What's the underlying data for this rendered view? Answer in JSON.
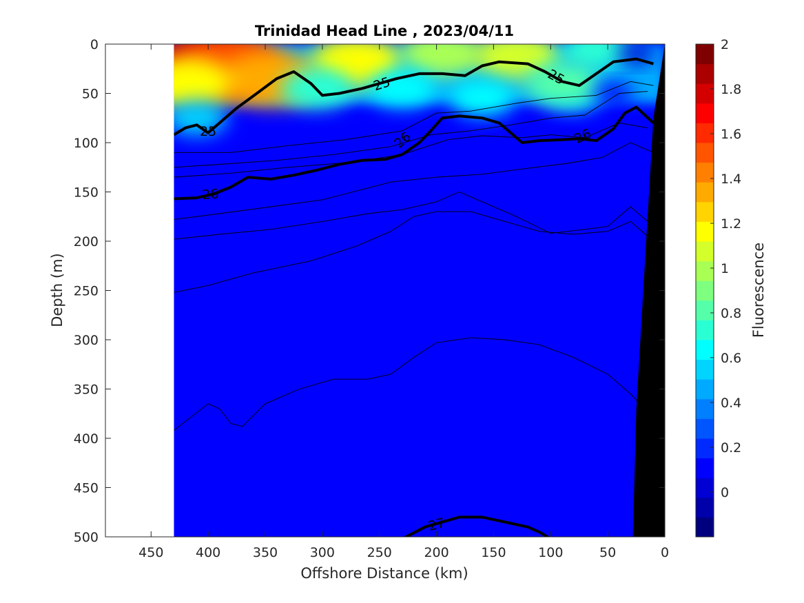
{
  "chart_data": {
    "type": "heatmap",
    "title": "Trinidad Head Line , 2023/04/11",
    "xlabel": "Offshore Distance (km)",
    "ylabel": "Depth (m)",
    "colorbar_label": "Fluorescence",
    "xlim": [
      490,
      0
    ],
    "ylim": [
      0,
      500
    ],
    "x_direction": "reversed",
    "y_direction": "reversed (depth increases downward)",
    "x_ticks": [
      450,
      400,
      350,
      300,
      250,
      200,
      150,
      100,
      50,
      0
    ],
    "y_ticks": [
      0,
      50,
      100,
      150,
      200,
      250,
      300,
      350,
      400,
      450,
      500
    ],
    "colorbar": {
      "range": [
        -0.2,
        2.0
      ],
      "tick_labels": [
        "2",
        "1.8",
        "1.6",
        "1.4",
        "1.2",
        "1",
        "0.8",
        "0.6",
        "0.4",
        "0.2",
        "0"
      ],
      "tick_values": [
        2.0,
        1.8,
        1.6,
        1.4,
        1.2,
        1.0,
        0.8,
        0.6,
        0.4,
        0.2,
        0.0
      ],
      "colors": [
        "#00007f",
        "#0000aa",
        "#0000d4",
        "#0000ff",
        "#002aff",
        "#0055ff",
        "#007fff",
        "#00aaff",
        "#00d4ff",
        "#00ffff",
        "#2affd4",
        "#55ffaa",
        "#7fff7f",
        "#aaff55",
        "#d4ff2a",
        "#ffff00",
        "#ffd400",
        "#ffaa00",
        "#ff7f00",
        "#ff5500",
        "#ff2a00",
        "#ff0000",
        "#d40000",
        "#aa0000",
        "#7f0000"
      ]
    },
    "data_extent_km": [
      430,
      10
    ],
    "background_fluorescence": 0.15,
    "fluorescence_patches": [
      {
        "x": 400,
        "z": 22,
        "value": 1.75
      },
      {
        "x": 380,
        "z": 25,
        "value": 1.5
      },
      {
        "x": 345,
        "z": 35,
        "value": 1.3
      },
      {
        "x": 420,
        "z": 40,
        "value": 1.2
      },
      {
        "x": 270,
        "z": 18,
        "value": 1.15
      },
      {
        "x": 195,
        "z": 10,
        "value": 1.0
      },
      {
        "x": 130,
        "z": 12,
        "value": 1.05
      },
      {
        "x": 305,
        "z": 45,
        "value": 0.75
      },
      {
        "x": 230,
        "z": 45,
        "value": 0.65
      },
      {
        "x": 160,
        "z": 55,
        "value": 0.6
      },
      {
        "x": 80,
        "z": 50,
        "value": 0.55
      },
      {
        "x": 60,
        "z": 5,
        "value": 0.7
      },
      {
        "x": 410,
        "z": 75,
        "value": 0.55
      },
      {
        "x": 90,
        "z": 40,
        "value": 0.8
      },
      {
        "x": 45,
        "z": 50,
        "value": 0.1
      },
      {
        "x": 25,
        "z": 10,
        "value": 0.05
      }
    ],
    "isopycnals": [
      {
        "name": "25",
        "label": "25",
        "bold": true,
        "points": [
          [
            430,
            92
          ],
          [
            420,
            85
          ],
          [
            410,
            82
          ],
          [
            400,
            90
          ],
          [
            390,
            80
          ],
          [
            375,
            65
          ],
          [
            355,
            48
          ],
          [
            340,
            35
          ],
          [
            325,
            28
          ],
          [
            310,
            40
          ],
          [
            300,
            52
          ],
          [
            285,
            50
          ],
          [
            265,
            45
          ],
          [
            250,
            40
          ],
          [
            235,
            35
          ],
          [
            215,
            30
          ],
          [
            195,
            30
          ],
          [
            175,
            32
          ],
          [
            160,
            22
          ],
          [
            145,
            18
          ],
          [
            120,
            20
          ],
          [
            105,
            28
          ],
          [
            90,
            38
          ],
          [
            75,
            42
          ],
          [
            60,
            30
          ],
          [
            45,
            18
          ],
          [
            25,
            15
          ],
          [
            10,
            20
          ]
        ]
      },
      {
        "name": "26",
        "label": "26",
        "bold": true,
        "points": [
          [
            430,
            157
          ],
          [
            410,
            156
          ],
          [
            395,
            152
          ],
          [
            380,
            145
          ],
          [
            365,
            135
          ],
          [
            345,
            137
          ],
          [
            325,
            133
          ],
          [
            305,
            128
          ],
          [
            285,
            122
          ],
          [
            265,
            118
          ],
          [
            245,
            117
          ],
          [
            230,
            112
          ],
          [
            215,
            100
          ],
          [
            205,
            88
          ],
          [
            195,
            75
          ],
          [
            180,
            73
          ],
          [
            160,
            75
          ],
          [
            145,
            80
          ],
          [
            125,
            100
          ],
          [
            110,
            98
          ],
          [
            90,
            97
          ],
          [
            75,
            96
          ],
          [
            60,
            98
          ],
          [
            45,
            86
          ],
          [
            35,
            70
          ],
          [
            25,
            64
          ],
          [
            10,
            80
          ]
        ]
      },
      {
        "name": "27",
        "label": "27",
        "bold": true,
        "points": [
          [
            230,
            502
          ],
          [
            210,
            490
          ],
          [
            195,
            485
          ],
          [
            180,
            480
          ],
          [
            160,
            480
          ],
          [
            140,
            485
          ],
          [
            120,
            490
          ],
          [
            110,
            495
          ],
          [
            100,
            502
          ]
        ]
      }
    ],
    "thin_contours": [
      [
        [
          430,
          110
        ],
        [
          380,
          110
        ],
        [
          330,
          103
        ],
        [
          280,
          97
        ],
        [
          230,
          88
        ],
        [
          200,
          70
        ],
        [
          170,
          68
        ],
        [
          130,
          60
        ],
        [
          100,
          55
        ],
        [
          60,
          52
        ],
        [
          30,
          38
        ],
        [
          10,
          42
        ]
      ],
      [
        [
          430,
          125
        ],
        [
          390,
          122
        ],
        [
          340,
          118
        ],
        [
          290,
          112
        ],
        [
          240,
          104
        ],
        [
          205,
          92
        ],
        [
          170,
          88
        ],
        [
          135,
          82
        ],
        [
          100,
          75
        ],
        [
          70,
          72
        ],
        [
          40,
          50
        ],
        [
          15,
          48
        ]
      ],
      [
        [
          430,
          135
        ],
        [
          380,
          131
        ],
        [
          330,
          125
        ],
        [
          275,
          120
        ],
        [
          230,
          112
        ],
        [
          190,
          97
        ],
        [
          160,
          93
        ],
        [
          125,
          95
        ],
        [
          100,
          92
        ],
        [
          70,
          95
        ],
        [
          40,
          80
        ],
        [
          15,
          85
        ]
      ],
      [
        [
          430,
          178
        ],
        [
          390,
          172
        ],
        [
          345,
          165
        ],
        [
          300,
          158
        ],
        [
          270,
          149
        ],
        [
          240,
          140
        ],
        [
          200,
          135
        ],
        [
          160,
          132
        ],
        [
          120,
          126
        ],
        [
          85,
          121
        ],
        [
          55,
          115
        ],
        [
          30,
          100
        ],
        [
          10,
          110
        ]
      ],
      [
        [
          430,
          198
        ],
        [
          390,
          193
        ],
        [
          345,
          188
        ],
        [
          300,
          180
        ],
        [
          260,
          172
        ],
        [
          230,
          168
        ],
        [
          200,
          160
        ],
        [
          180,
          150
        ],
        [
          160,
          160
        ],
        [
          130,
          175
        ],
        [
          100,
          192
        ],
        [
          70,
          188
        ],
        [
          50,
          185
        ],
        [
          30,
          165
        ],
        [
          10,
          185
        ]
      ],
      [
        [
          430,
          252
        ],
        [
          400,
          245
        ],
        [
          360,
          232
        ],
        [
          310,
          220
        ],
        [
          270,
          205
        ],
        [
          240,
          190
        ],
        [
          220,
          175
        ],
        [
          200,
          170
        ],
        [
          170,
          170
        ],
        [
          140,
          180
        ],
        [
          110,
          190
        ],
        [
          80,
          193
        ],
        [
          50,
          190
        ],
        [
          30,
          180
        ],
        [
          10,
          200
        ]
      ],
      [
        [
          430,
          392
        ],
        [
          410,
          374
        ],
        [
          400,
          365
        ],
        [
          390,
          370
        ],
        [
          380,
          385
        ],
        [
          370,
          388
        ],
        [
          350,
          365
        ],
        [
          320,
          350
        ],
        [
          290,
          340
        ],
        [
          260,
          340
        ],
        [
          240,
          335
        ],
        [
          220,
          318
        ],
        [
          200,
          303
        ],
        [
          170,
          298
        ],
        [
          140,
          300
        ],
        [
          110,
          305
        ],
        [
          80,
          318
        ],
        [
          50,
          335
        ],
        [
          30,
          355
        ],
        [
          10,
          380
        ]
      ]
    ],
    "contour_labels": [
      {
        "text": "25",
        "x": 400,
        "z": 88,
        "angle": 0
      },
      {
        "text": "25",
        "x": 248,
        "z": 40,
        "angle": -18
      },
      {
        "text": "25",
        "x": 95,
        "z": 33,
        "angle": 28
      },
      {
        "text": "26",
        "x": 398,
        "z": 152,
        "angle": -5
      },
      {
        "text": "26",
        "x": 230,
        "z": 97,
        "angle": -40
      },
      {
        "text": "26",
        "x": 72,
        "z": 93,
        "angle": -25
      },
      {
        "text": "27",
        "x": 200,
        "z": 487,
        "angle": -15
      }
    ],
    "bathymetry": [
      [
        0,
        0
      ],
      [
        10,
        75
      ],
      [
        25,
        370
      ],
      [
        28,
        500
      ],
      [
        0,
        500
      ]
    ]
  }
}
